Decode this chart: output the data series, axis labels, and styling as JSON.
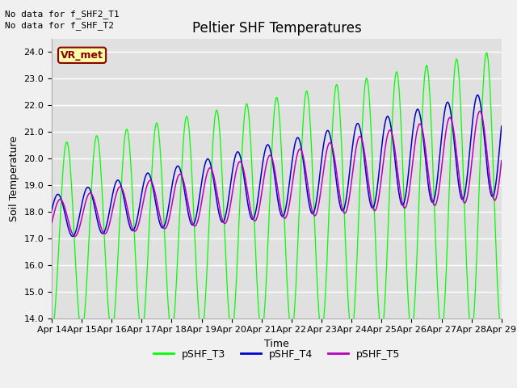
{
  "title": "Peltier SHF Temperatures",
  "xlabel": "Time",
  "ylabel": "Soil Temperature",
  "no_data_text": [
    "No data for f_SHF2_T1",
    "No data for f_SHF_T2"
  ],
  "vr_met_label": "VR_met",
  "ylim": [
    14.0,
    24.5
  ],
  "yticks": [
    14.0,
    15.0,
    16.0,
    17.0,
    18.0,
    19.0,
    20.0,
    21.0,
    22.0,
    23.0,
    24.0
  ],
  "xtick_labels": [
    "Apr 14",
    "Apr 15",
    "Apr 16",
    "Apr 17",
    "Apr 18",
    "Apr 19",
    "Apr 20",
    "Apr 21",
    "Apr 22",
    "Apr 23",
    "Apr 24",
    "Apr 25",
    "Apr 26",
    "Apr 27",
    "Apr 28",
    "Apr 29"
  ],
  "legend_labels": [
    "pSHF_T3",
    "pSHF_T4",
    "pSHF_T5"
  ],
  "colors": {
    "T3": "#00ff00",
    "T4": "#0000cc",
    "T5": "#bb00bb"
  },
  "fig_facecolor": "#f0f0f0",
  "axes_facecolor": "#e0e0e0",
  "grid_color": "#ffffff",
  "title_fontsize": 12,
  "axis_label_fontsize": 9,
  "tick_fontsize": 8,
  "legend_fontsize": 9,
  "no_data_fontsize": 8
}
